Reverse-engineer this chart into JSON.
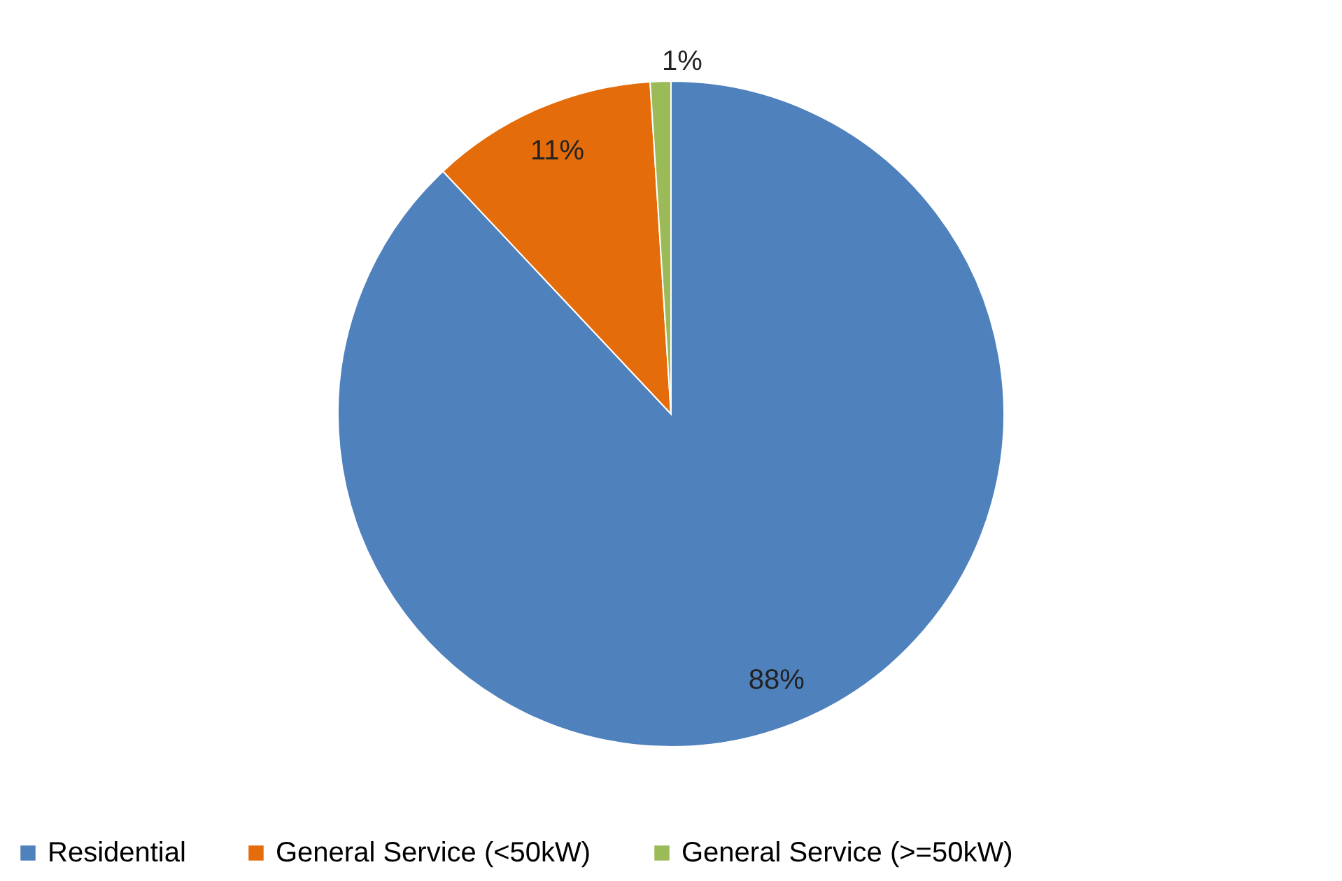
{
  "chart_data": {
    "type": "pie",
    "categories": [
      "Residential",
      "General Service (<50kW)",
      "General Service (>=50kW)"
    ],
    "values": [
      88,
      11,
      1
    ],
    "colors": [
      "#4f81bd",
      "#e46c0a",
      "#9bbb59"
    ],
    "value_labels": [
      "88%",
      "11%",
      "1%"
    ],
    "legend": "bottom"
  }
}
